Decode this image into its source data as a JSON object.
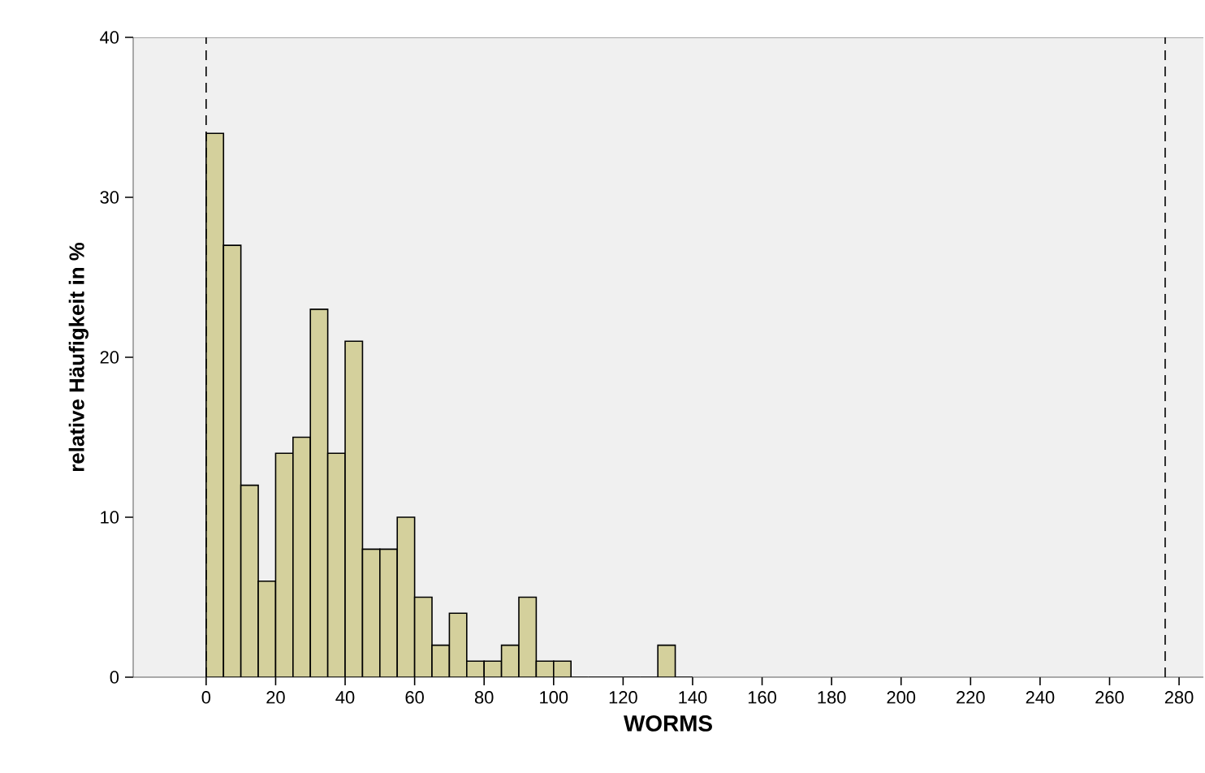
{
  "chart_data": {
    "type": "histogram",
    "xlabel": "WORMS",
    "ylabel": "relative Häufigkeit in %",
    "bins": [
      0,
      5,
      10,
      15,
      20,
      25,
      30,
      35,
      40,
      45,
      50,
      55,
      60,
      65,
      70,
      75,
      80,
      85,
      90,
      95,
      100,
      105,
      110,
      115,
      120,
      125,
      130,
      135,
      140
    ],
    "values": [
      34,
      27,
      12,
      6,
      14,
      15,
      23,
      14,
      21,
      8,
      8,
      10,
      5,
      2,
      4,
      1,
      1,
      2,
      5,
      1,
      1,
      0,
      0,
      0,
      0,
      0,
      2,
      0
    ],
    "color": "#d4d09c",
    "xlim": [
      -21,
      287
    ],
    "ylim": [
      0,
      40
    ],
    "xticks": [
      0,
      20,
      40,
      60,
      80,
      100,
      120,
      140,
      160,
      180,
      200,
      220,
      240,
      260,
      280
    ],
    "yticks": [
      0,
      10,
      20,
      30,
      40
    ],
    "ref_lines": [
      {
        "axis": "x",
        "value": 0,
        "line_style": "dashed",
        "color": "#000000"
      },
      {
        "axis": "x",
        "value": 276,
        "line_style": "dashed",
        "color": "#000000"
      }
    ]
  }
}
